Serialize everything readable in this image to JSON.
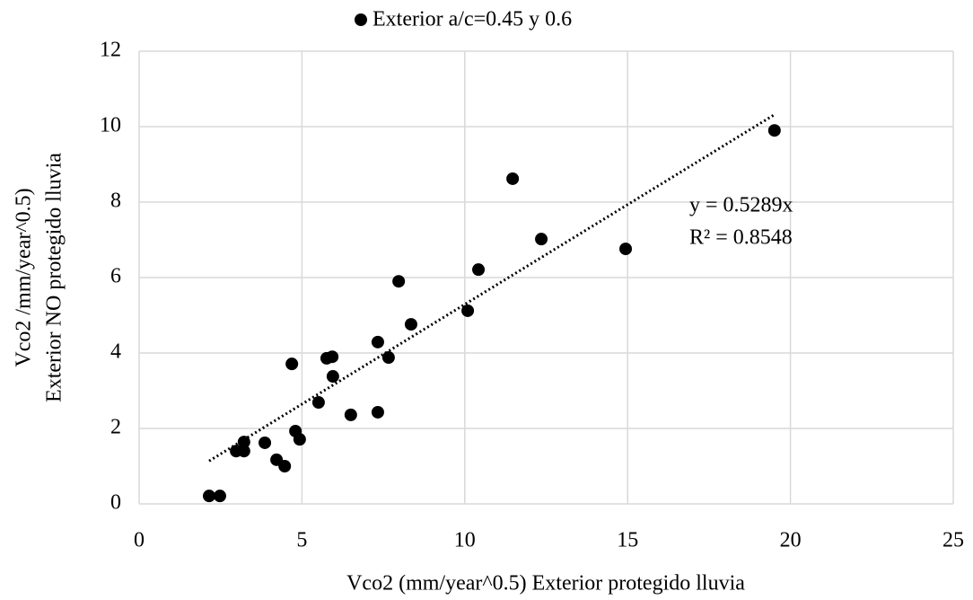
{
  "chart_data": {
    "type": "scatter",
    "series": [
      {
        "name": "Exterior a/c=0.45 y 0.6",
        "color": "#000000",
        "x": [
          2.15,
          2.48,
          2.98,
          3.22,
          3.22,
          3.86,
          4.22,
          4.47,
          4.69,
          4.8,
          4.93,
          5.51,
          5.76,
          5.93,
          5.95,
          6.5,
          7.33,
          7.33,
          7.66,
          7.97,
          8.35,
          10.09,
          10.42,
          11.47,
          12.35,
          14.94,
          19.51
        ],
        "values": [
          0.21,
          0.21,
          1.4,
          1.64,
          1.4,
          1.62,
          1.17,
          1.0,
          3.71,
          1.93,
          1.71,
          2.69,
          3.86,
          3.9,
          3.38,
          2.36,
          4.29,
          2.43,
          3.88,
          5.9,
          4.76,
          5.12,
          6.21,
          8.62,
          7.02,
          6.76,
          9.9
        ]
      }
    ],
    "trendline": {
      "slope": 0.5289,
      "equation": "y = 0.5289x",
      "r2": "R² = 0.8548"
    },
    "xlabel": "Vco2 (mm/year^0.5) Exterior protegido lluvia",
    "ylabel": [
      "Vco2 /mm/year^0.5)",
      "Exterior NO protegido lluvia"
    ],
    "xlim": [
      0,
      25
    ],
    "xticks": [
      0,
      5,
      10,
      15,
      20,
      25
    ],
    "ylim": [
      0,
      12
    ],
    "yticks": [
      0,
      2,
      4,
      6,
      8,
      10,
      12
    ],
    "grid": true,
    "legend": "top"
  }
}
